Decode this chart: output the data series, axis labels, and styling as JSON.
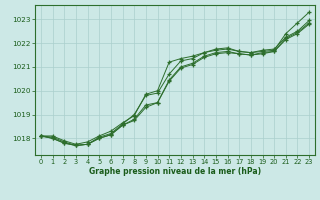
{
  "background_color": "#cce8e6",
  "grid_color": "#aacfcd",
  "line_color": "#2d6e2d",
  "text_color": "#1a5c1a",
  "xlabel": "Graphe pression niveau de la mer (hPa)",
  "xlim": [
    -0.5,
    23.5
  ],
  "ylim": [
    1017.3,
    1023.6
  ],
  "yticks": [
    1018,
    1019,
    1020,
    1021,
    1022,
    1023
  ],
  "xticks": [
    0,
    1,
    2,
    3,
    4,
    5,
    6,
    7,
    8,
    9,
    10,
    11,
    12,
    13,
    14,
    15,
    16,
    17,
    18,
    19,
    20,
    21,
    22,
    23
  ],
  "series": [
    [
      1018.1,
      1018.1,
      1017.9,
      1017.75,
      1017.85,
      1018.1,
      1018.3,
      1018.65,
      1018.95,
      1019.85,
      1020.0,
      1021.2,
      1021.35,
      1021.45,
      1021.6,
      1021.7,
      1021.75,
      1021.65,
      1021.6,
      1021.65,
      1021.7,
      1022.4,
      1022.85,
      1023.3
    ],
    [
      1018.1,
      1018.05,
      1017.85,
      1017.7,
      1017.75,
      1018.0,
      1018.15,
      1018.55,
      1018.8,
      1019.4,
      1019.5,
      1020.4,
      1020.95,
      1021.1,
      1021.4,
      1021.55,
      1021.6,
      1021.55,
      1021.5,
      1021.55,
      1021.65,
      1022.15,
      1022.4,
      1022.8
    ],
    [
      1018.1,
      1018.0,
      1017.8,
      1017.7,
      1017.75,
      1018.0,
      1018.15,
      1018.55,
      1018.75,
      1019.3,
      1019.5,
      1020.45,
      1021.0,
      1021.15,
      1021.45,
      1021.6,
      1021.65,
      1021.55,
      1021.5,
      1021.6,
      1021.65,
      1022.2,
      1022.45,
      1022.85
    ],
    [
      1018.1,
      1018.0,
      1017.8,
      1017.7,
      1017.75,
      1018.05,
      1018.2,
      1018.6,
      1019.0,
      1019.8,
      1019.9,
      1020.7,
      1021.25,
      1021.35,
      1021.6,
      1021.75,
      1021.8,
      1021.65,
      1021.6,
      1021.7,
      1021.75,
      1022.25,
      1022.5,
      1022.95
    ]
  ],
  "figsize": [
    3.2,
    2.0
  ],
  "dpi": 100
}
